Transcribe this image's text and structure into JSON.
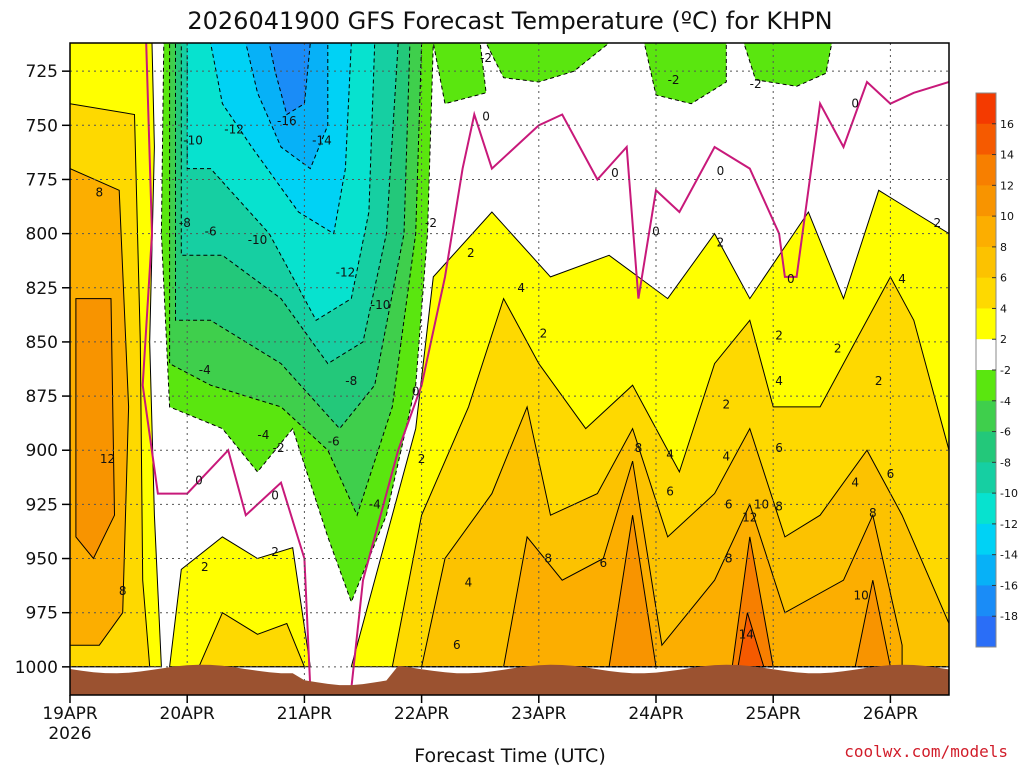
{
  "chart_data": {
    "type": "heatmap",
    "title": "2026041900 GFS Forecast Temperature (ºC) for KHPN",
    "xlabel": "Forecast Time (UTC)",
    "ylabel": "",
    "credit": "coolwx.com/models",
    "x_ticks": [
      {
        "label": "19APR",
        "sublabel": "2026",
        "day": 0
      },
      {
        "label": "20APR",
        "day": 1
      },
      {
        "label": "21APR",
        "day": 2
      },
      {
        "label": "22APR",
        "day": 3
      },
      {
        "label": "23APR",
        "day": 4
      },
      {
        "label": "24APR",
        "day": 5
      },
      {
        "label": "25APR",
        "day": 6
      },
      {
        "label": "26APR",
        "day": 7
      }
    ],
    "xlim_days": [
      0,
      7.5
    ],
    "y_ticks": [
      {
        "label": "725",
        "p": 725
      },
      {
        "label": "750",
        "p": 750
      },
      {
        "label": "775",
        "p": 775
      },
      {
        "label": "800",
        "p": 800
      },
      {
        "label": "825",
        "p": 825
      },
      {
        "label": "850",
        "p": 850
      },
      {
        "label": "875",
        "p": 875
      },
      {
        "label": "900",
        "p": 900
      },
      {
        "label": "925",
        "p": 925
      },
      {
        "label": "950",
        "p": 950
      },
      {
        "label": "975",
        "p": 975
      },
      {
        "label": "1000",
        "p": 1000
      }
    ],
    "ylim_hpa": [
      712,
      1013
    ],
    "colorbar": [
      {
        "label": "16",
        "value": 16
      },
      {
        "label": "14",
        "value": 14
      },
      {
        "label": "12",
        "value": 12
      },
      {
        "label": "10",
        "value": 10
      },
      {
        "label": "8",
        "value": 8
      },
      {
        "label": "6",
        "value": 6
      },
      {
        "label": "4",
        "value": 4
      },
      {
        "label": "2",
        "value": 2
      },
      {
        "label": "-2",
        "value": -2
      },
      {
        "label": "-4",
        "value": -4
      },
      {
        "label": "-6",
        "value": -6
      },
      {
        "label": "-8",
        "value": -8
      },
      {
        "label": "-10",
        "value": -10
      },
      {
        "label": "-12",
        "value": -12
      },
      {
        "label": "-14",
        "value": -14
      },
      {
        "label": "-16",
        "value": -16
      },
      {
        "label": "-18",
        "value": -18
      }
    ],
    "colorbar_bins": [
      {
        "range": "16 to 18",
        "color": "#f43a00"
      },
      {
        "range": "14 to 16",
        "color": "#f55a00"
      },
      {
        "range": "12 to 14",
        "color": "#f77f00"
      },
      {
        "range": "10 to 12",
        "color": "#f89400"
      },
      {
        "range": "8 to 10",
        "color": "#fcae00"
      },
      {
        "range": "6 to 8",
        "color": "#fcc200"
      },
      {
        "range": "4 to 6",
        "color": "#fed900"
      },
      {
        "range": "2 to 4",
        "color": "#ffff00"
      },
      {
        "range": "-2 to 2",
        "color": "#ffffff"
      },
      {
        "range": "-4 to -2",
        "color": "#5ae60f"
      },
      {
        "range": "-6 to -4",
        "color": "#3fcf4c"
      },
      {
        "range": "-8 to -6",
        "color": "#23c87a"
      },
      {
        "range": "-10 to -8",
        "color": "#16cfa2"
      },
      {
        "range": "-12 to -10",
        "color": "#07e2cf"
      },
      {
        "range": "-14 to -12",
        "color": "#00d2f5"
      },
      {
        "range": "-16 to -14",
        "color": "#07b1f7"
      },
      {
        "range": "-18 to -16",
        "color": "#1a8cf7"
      },
      {
        "range": "-20 to -18",
        "color": "#2a6ef7"
      }
    ],
    "terrain_color": "#9b5230",
    "freezing_line_color": "#c8197a",
    "contour_labels": [
      {
        "text": "-2",
        "day": 3.55,
        "p": 719
      },
      {
        "text": "-2",
        "day": 5.15,
        "p": 729
      },
      {
        "text": "-2",
        "day": 5.85,
        "p": 731
      },
      {
        "text": "0",
        "day": 3.55,
        "p": 746
      },
      {
        "text": "0",
        "day": 6.7,
        "p": 740
      },
      {
        "text": "0",
        "day": 4.65,
        "p": 772
      },
      {
        "text": "0",
        "day": 5.55,
        "p": 771
      },
      {
        "text": "0",
        "day": 5.0,
        "p": 799
      },
      {
        "text": "0",
        "day": 6.15,
        "p": 821
      },
      {
        "text": "0",
        "day": 2.95,
        "p": 873
      },
      {
        "text": "0",
        "day": 1.1,
        "p": 914
      },
      {
        "text": "0",
        "day": 1.75,
        "p": 921
      },
      {
        "text": "-16",
        "day": 1.85,
        "p": 748
      },
      {
        "text": "-14",
        "day": 2.15,
        "p": 757
      },
      {
        "text": "-12",
        "day": 1.4,
        "p": 752
      },
      {
        "text": "-10",
        "day": 1.05,
        "p": 757
      },
      {
        "text": "-10",
        "day": 1.6,
        "p": 803
      },
      {
        "text": "-12",
        "day": 2.35,
        "p": 818
      },
      {
        "text": "-10",
        "day": 2.65,
        "p": 833
      },
      {
        "text": "-8",
        "day": 0.98,
        "p": 795
      },
      {
        "text": "-6",
        "day": 1.2,
        "p": 799
      },
      {
        "text": "-8",
        "day": 2.4,
        "p": 868
      },
      {
        "text": "-6",
        "day": 2.25,
        "p": 896
      },
      {
        "text": "-4",
        "day": 1.15,
        "p": 863
      },
      {
        "text": "-4",
        "day": 1.65,
        "p": 893
      },
      {
        "text": "-2",
        "day": 1.78,
        "p": 899
      },
      {
        "text": "-4",
        "day": 2.6,
        "p": 925
      },
      {
        "text": "-2",
        "day": 3.08,
        "p": 795
      },
      {
        "text": "2",
        "day": 3.42,
        "p": 809
      },
      {
        "text": "2",
        "day": 3.0,
        "p": 904
      },
      {
        "text": "4",
        "day": 3.85,
        "p": 825
      },
      {
        "text": "2",
        "day": 4.04,
        "p": 846
      },
      {
        "text": "2",
        "day": 5.55,
        "p": 804
      },
      {
        "text": "2",
        "day": 6.05,
        "p": 847
      },
      {
        "text": "2",
        "day": 6.55,
        "p": 853
      },
      {
        "text": "2",
        "day": 6.9,
        "p": 868
      },
      {
        "text": "2",
        "day": 7.4,
        "p": 795
      },
      {
        "text": "4",
        "day": 7.1,
        "p": 821
      },
      {
        "text": "4",
        "day": 6.05,
        "p": 868
      },
      {
        "text": "2",
        "day": 5.6,
        "p": 879
      },
      {
        "text": "4",
        "day": 5.12,
        "p": 902
      },
      {
        "text": "4",
        "day": 5.6,
        "p": 903
      },
      {
        "text": "6",
        "day": 6.05,
        "p": 899
      },
      {
        "text": "8",
        "day": 4.85,
        "p": 899
      },
      {
        "text": "6",
        "day": 5.12,
        "p": 919
      },
      {
        "text": "6",
        "day": 5.62,
        "p": 925
      },
      {
        "text": "10",
        "day": 5.9,
        "p": 925
      },
      {
        "text": "8",
        "day": 6.05,
        "p": 926
      },
      {
        "text": "12",
        "day": 5.8,
        "p": 931
      },
      {
        "text": "8",
        "day": 5.62,
        "p": 950
      },
      {
        "text": "14",
        "day": 5.77,
        "p": 985
      },
      {
        "text": "4",
        "day": 6.7,
        "p": 915
      },
      {
        "text": "6",
        "day": 7.0,
        "p": 911
      },
      {
        "text": "8",
        "day": 6.85,
        "p": 929
      },
      {
        "text": "10",
        "day": 6.75,
        "p": 967
      },
      {
        "text": "8",
        "day": 4.08,
        "p": 950
      },
      {
        "text": "6",
        "day": 4.55,
        "p": 952
      },
      {
        "text": "4",
        "day": 3.4,
        "p": 961
      },
      {
        "text": "6",
        "day": 3.3,
        "p": 990
      },
      {
        "text": "2",
        "day": 1.15,
        "p": 954
      },
      {
        "text": "2",
        "day": 1.75,
        "p": 947
      },
      {
        "text": "8",
        "day": 0.25,
        "p": 781
      },
      {
        "text": "12",
        "day": 0.32,
        "p": 904
      },
      {
        "text": "8",
        "day": 0.45,
        "p": 965
      }
    ]
  }
}
